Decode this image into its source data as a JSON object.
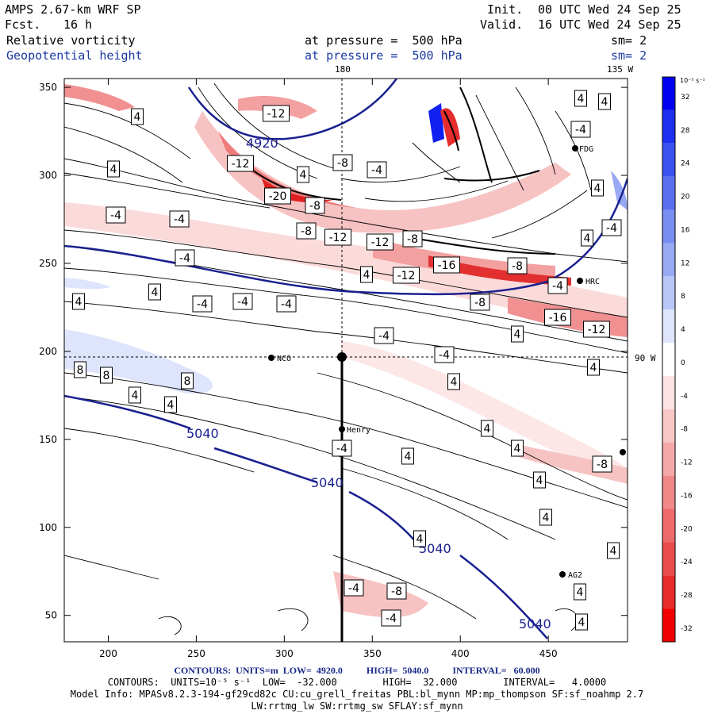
{
  "header": {
    "title": "AMPS 2.67-km WRF SP",
    "forecast_label": "Fcst.",
    "forecast_value": "16 h",
    "init_label": "Init.",
    "init_value": "00 UTC Wed 24 Sep 25",
    "valid_label": "Valid.",
    "valid_value": "16 UTC Wed 24 Sep 25",
    "field1_name": "Relative vorticity",
    "field1_level": "at pressure =  500 hPa",
    "field1_smooth": "sm= 2",
    "field2_name": "Geopotential height",
    "field2_level": "at pressure =  500 hPa",
    "field2_smooth": "sm= 2"
  },
  "map": {
    "x_ticks": [
      "200",
      "250",
      "300",
      "350",
      "400",
      "450"
    ],
    "y_ticks": [
      "350",
      "300",
      "250",
      "200",
      "150",
      "100",
      "50"
    ],
    "lon_labels": [
      "180",
      "135 W",
      "90 W"
    ],
    "stations": [
      "NCO",
      "Henry",
      "HRC",
      "AG2",
      "FDG"
    ],
    "height_contour_labels": [
      "4920",
      "5040",
      "5040",
      "5040",
      "5040"
    ],
    "vorticity_contour_labels": [
      "-12",
      "4",
      "4",
      "4",
      "-12",
      "-8",
      "-4",
      "4",
      "4",
      "-4",
      "-20",
      "-8",
      "-12",
      "-12",
      "-8",
      "-8",
      "-4",
      "-4",
      "-4",
      "-16",
      "-8",
      "-4",
      "4",
      "4",
      "4",
      "-4",
      "-4",
      "-4",
      "-12",
      "-8",
      "-16",
      "-12",
      "4",
      "4",
      "4",
      "-4",
      "-4",
      "-4",
      "8",
      "8",
      "8",
      "4",
      "4",
      "4",
      "4",
      "-4",
      "4",
      "4",
      "-8",
      "4",
      "4",
      "4",
      "-4",
      "-8",
      "-4",
      "4",
      "4",
      "4",
      "4"
    ],
    "pole_marker": "+"
  },
  "colorbar": {
    "units": "10⁻⁵ s⁻¹",
    "labels": [
      "32",
      "28",
      "24",
      "20",
      "16",
      "12",
      "8",
      "4",
      "0",
      "-4",
      "-8",
      "-12",
      "-16",
      "-20",
      "-24",
      "-28",
      "-32"
    ],
    "colors": [
      "#0000f0",
      "#1e30f0",
      "#3c52f0",
      "#5a70f0",
      "#7a8ef2",
      "#98aaf4",
      "#b8c6f8",
      "#dde4fb",
      "#ffffff",
      "#fde3e3",
      "#f9c6c6",
      "#f5a8a8",
      "#f18888",
      "#ee6a6a",
      "#ea4b4b",
      "#e62c2c",
      "#f00000"
    ]
  },
  "footer": {
    "line1": "CONTOURS:  UNITS=m  LOW=  4920.0          HIGH=  5040.0          INTERVAL=   60.000",
    "line2": "CONTOURS:  UNITS=10⁻⁵ s⁻¹  LOW=  -32.000        HIGH=  32.000        INTERVAL=   4.0000",
    "line3": "Model Info: MPASv8.2.3-194-gf29cd82c CU:cu_grell_freitas PBL:bl_mynn MP:mp_thompson SF:sf_noahmp 2.7",
    "line4": "LW:rrtmg_lw SW:rrtmg_sw SFLAY:sf_mynn"
  },
  "colors": {
    "height_contour": "#1a2090",
    "header_blue": "#1a3aa0"
  }
}
